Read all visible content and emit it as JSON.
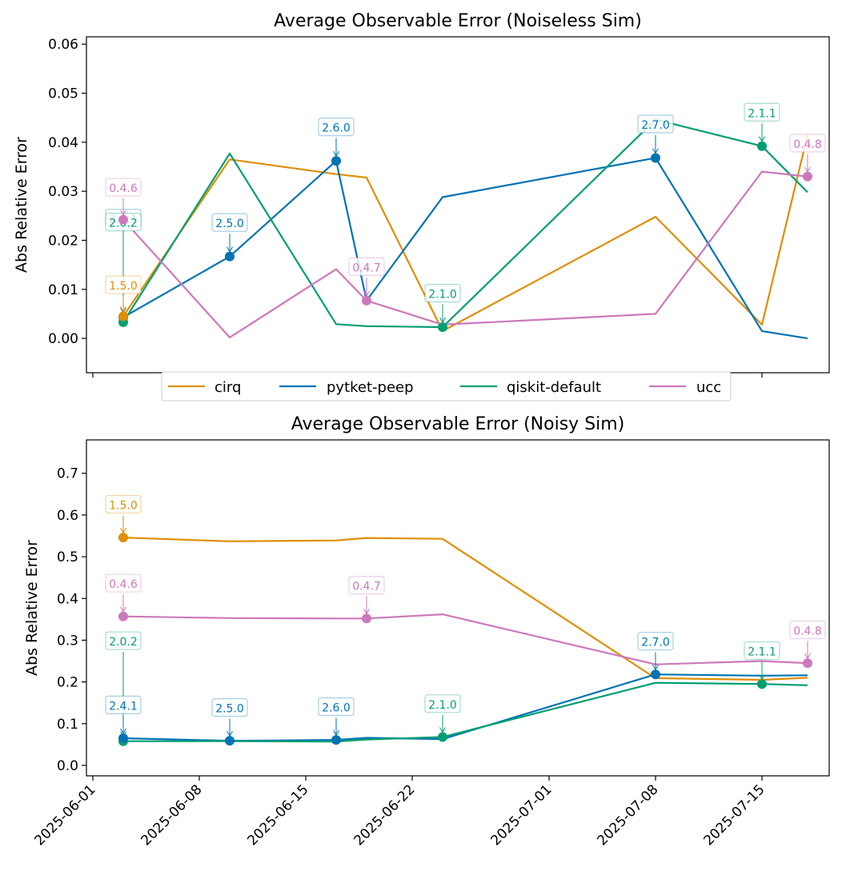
{
  "colors": {
    "cirq": "#de8f05",
    "pytket-peep": "#0173b2",
    "qiskit-default": "#029e73",
    "ucc": "#cc78bc"
  },
  "legend": {
    "entries": [
      "cirq",
      "pytket-peep",
      "qiskit-default",
      "ucc"
    ],
    "placement": "below top chart, centered"
  },
  "x_tick_labels": [
    "2025-06-01",
    "2025-06-08",
    "2025-06-15",
    "2025-06-22",
    "2025-07-01",
    "2025-07-08",
    "2025-07-15"
  ],
  "chart_data": [
    {
      "type": "line",
      "title": "Average Observable Error (Noiseless Sim)",
      "xlabel": "",
      "ylabel": "Abs Relative Error",
      "x_type": "date",
      "xlim": [
        "2025-06-01",
        "2025-07-18"
      ],
      "ylim": [
        -0.007,
        0.0615
      ],
      "yticks": [
        "0.00",
        "0.01",
        "0.02",
        "0.03",
        "0.04",
        "0.05",
        "0.06"
      ],
      "grid": false,
      "series": [
        {
          "name": "cirq",
          "points": [
            [
              "2025-06-03",
              0.0045
            ],
            [
              "2025-06-10",
              0.0365
            ],
            [
              "2025-06-17",
              0.0335
            ],
            [
              "2025-06-19",
              0.0328
            ],
            [
              "2025-06-24",
              0.0015
            ],
            [
              "2025-07-08",
              0.0248
            ],
            [
              "2025-07-15",
              0.0028
            ],
            [
              "2025-07-18",
              0.0415
            ]
          ]
        },
        {
          "name": "pytket-peep",
          "points": [
            [
              "2025-06-03",
              0.0043
            ],
            [
              "2025-06-10",
              0.0167
            ],
            [
              "2025-06-17",
              0.0362
            ],
            [
              "2025-06-19",
              0.0077
            ],
            [
              "2025-06-24",
              0.0288
            ],
            [
              "2025-07-08",
              0.0368
            ],
            [
              "2025-07-15",
              0.0015
            ],
            [
              "2025-07-18",
              0.0
            ]
          ]
        },
        {
          "name": "qiskit-default",
          "points": [
            [
              "2025-06-03",
              0.0033
            ],
            [
              "2025-06-10",
              0.0377
            ],
            [
              "2025-06-17",
              0.0029
            ],
            [
              "2025-06-19",
              0.0025
            ],
            [
              "2025-06-24",
              0.0023
            ],
            [
              "2025-07-08",
              0.0446
            ],
            [
              "2025-07-15",
              0.0392
            ],
            [
              "2025-07-18",
              0.0298
            ]
          ]
        },
        {
          "name": "ucc",
          "points": [
            [
              "2025-06-03",
              0.0242
            ],
            [
              "2025-06-10",
              0.0002
            ],
            [
              "2025-06-17",
              0.0141
            ],
            [
              "2025-06-19",
              0.0077
            ],
            [
              "2025-06-24",
              0.0028
            ],
            [
              "2025-07-08",
              0.005
            ],
            [
              "2025-07-15",
              0.034
            ],
            [
              "2025-07-18",
              0.033
            ]
          ]
        }
      ],
      "annotations": [
        {
          "text": "2.4.1",
          "series": "pytket-peep",
          "x": "2025-06-03",
          "y": 0.0043,
          "label_y": 0.0242
        },
        {
          "text": "2.0.2",
          "series": "qiskit-default",
          "x": "2025-06-03",
          "y": 0.0033,
          "label_y": 0.0234
        },
        {
          "text": "1.5.0",
          "series": "cirq",
          "x": "2025-06-03",
          "y": 0.0045,
          "label_y": 0.0106
        },
        {
          "text": "0.4.6",
          "series": "ucc",
          "x": "2025-06-03",
          "y": 0.0242,
          "label_y": 0.0305
        },
        {
          "text": "2.5.0",
          "series": "pytket-peep",
          "x": "2025-06-10",
          "y": 0.0167,
          "label_y": 0.0233
        },
        {
          "text": "2.6.0",
          "series": "pytket-peep",
          "x": "2025-06-17",
          "y": 0.0362,
          "label_y": 0.0428
        },
        {
          "text": "0.4.7",
          "series": "ucc",
          "x": "2025-06-19",
          "y": 0.0077,
          "label_y": 0.0143
        },
        {
          "text": "2.1.0",
          "series": "qiskit-default",
          "x": "2025-06-24",
          "y": 0.0023,
          "label_y": 0.0089
        },
        {
          "text": "2.7.0",
          "series": "pytket-peep",
          "x": "2025-07-08",
          "y": 0.0368,
          "label_y": 0.0434
        },
        {
          "text": "2.1.1",
          "series": "qiskit-default",
          "x": "2025-07-15",
          "y": 0.0392,
          "label_y": 0.0458
        },
        {
          "text": "0.4.8",
          "series": "ucc",
          "x": "2025-07-18",
          "y": 0.033,
          "label_y": 0.0395
        }
      ]
    },
    {
      "type": "line",
      "title": "Average Observable Error (Noisy Sim)",
      "xlabel": "",
      "ylabel": "Abs Relative Error",
      "x_type": "date",
      "xlim": [
        "2025-06-01",
        "2025-07-18"
      ],
      "ylim": [
        -0.025,
        0.78
      ],
      "yticks": [
        "0.0",
        "0.1",
        "0.2",
        "0.3",
        "0.4",
        "0.5",
        "0.6",
        "0.7"
      ],
      "grid": false,
      "series": [
        {
          "name": "cirq",
          "points": [
            [
              "2025-06-03",
              0.546
            ],
            [
              "2025-06-10",
              0.537
            ],
            [
              "2025-06-17",
              0.539
            ],
            [
              "2025-06-19",
              0.545
            ],
            [
              "2025-06-24",
              0.543
            ],
            [
              "2025-07-08",
              0.209
            ],
            [
              "2025-07-15",
              0.205
            ],
            [
              "2025-07-18",
              0.21
            ]
          ]
        },
        {
          "name": "pytket-peep",
          "points": [
            [
              "2025-06-03",
              0.065
            ],
            [
              "2025-06-10",
              0.059
            ],
            [
              "2025-06-17",
              0.061
            ],
            [
              "2025-06-19",
              0.066
            ],
            [
              "2025-06-24",
              0.063
            ],
            [
              "2025-07-08",
              0.218
            ],
            [
              "2025-07-15",
              0.215
            ],
            [
              "2025-07-18",
              0.216
            ]
          ]
        },
        {
          "name": "qiskit-default",
          "points": [
            [
              "2025-06-03",
              0.058
            ],
            [
              "2025-06-10",
              0.058
            ],
            [
              "2025-06-17",
              0.057
            ],
            [
              "2025-06-19",
              0.062
            ],
            [
              "2025-06-24",
              0.068
            ],
            [
              "2025-07-08",
              0.198
            ],
            [
              "2025-07-15",
              0.195
            ],
            [
              "2025-07-18",
              0.192
            ]
          ]
        },
        {
          "name": "ucc",
          "points": [
            [
              "2025-06-03",
              0.357
            ],
            [
              "2025-06-10",
              0.353
            ],
            [
              "2025-06-17",
              0.352
            ],
            [
              "2025-06-19",
              0.352
            ],
            [
              "2025-06-24",
              0.362
            ],
            [
              "2025-07-08",
              0.242
            ],
            [
              "2025-07-15",
              0.25
            ],
            [
              "2025-07-18",
              0.245
            ]
          ]
        }
      ],
      "annotations": [
        {
          "text": "1.5.0",
          "series": "cirq",
          "x": "2025-06-03",
          "y": 0.546,
          "label_y": 0.622
        },
        {
          "text": "0.4.6",
          "series": "ucc",
          "x": "2025-06-03",
          "y": 0.357,
          "label_y": 0.433
        },
        {
          "text": "2.0.2",
          "series": "qiskit-default",
          "x": "2025-06-03",
          "y": 0.058,
          "label_y": 0.295
        },
        {
          "text": "2.4.1",
          "series": "pytket-peep",
          "x": "2025-06-03",
          "y": 0.065,
          "label_y": 0.141
        },
        {
          "text": "2.5.0",
          "series": "pytket-peep",
          "x": "2025-06-10",
          "y": 0.059,
          "label_y": 0.135
        },
        {
          "text": "2.6.0",
          "series": "pytket-peep",
          "x": "2025-06-17",
          "y": 0.061,
          "label_y": 0.137
        },
        {
          "text": "0.4.7",
          "series": "ucc",
          "x": "2025-06-19",
          "y": 0.352,
          "label_y": 0.428
        },
        {
          "text": "2.1.0",
          "series": "qiskit-default",
          "x": "2025-06-24",
          "y": 0.068,
          "label_y": 0.144
        },
        {
          "text": "2.7.0",
          "series": "pytket-peep",
          "x": "2025-07-08",
          "y": 0.218,
          "label_y": 0.294
        },
        {
          "text": "2.1.1",
          "series": "qiskit-default",
          "x": "2025-07-15",
          "y": 0.195,
          "label_y": 0.271
        },
        {
          "text": "0.4.8",
          "series": "ucc",
          "x": "2025-07-18",
          "y": 0.245,
          "label_y": 0.321
        }
      ]
    }
  ]
}
